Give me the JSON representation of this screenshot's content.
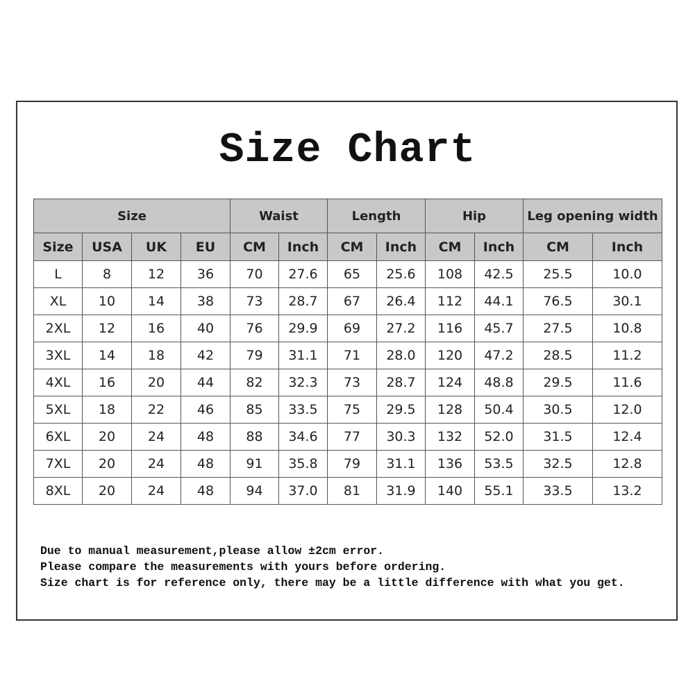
{
  "title": "Size Chart",
  "table": {
    "group_headers": [
      {
        "label": "Size",
        "span": 4
      },
      {
        "label": "Waist",
        "span": 2
      },
      {
        "label": "Length",
        "span": 2
      },
      {
        "label": "Hip",
        "span": 2
      },
      {
        "label": "Leg opening width",
        "span": 2
      }
    ],
    "sub_headers": [
      "Size",
      "USA",
      "UK",
      "EU",
      "CM",
      "Inch",
      "CM",
      "Inch",
      "CM",
      "Inch",
      "CM",
      "Inch"
    ],
    "rows": [
      [
        "L",
        "8",
        "12",
        "36",
        "70",
        "27.6",
        "65",
        "25.6",
        "108",
        "42.5",
        "25.5",
        "10.0"
      ],
      [
        "XL",
        "10",
        "14",
        "38",
        "73",
        "28.7",
        "67",
        "26.4",
        "112",
        "44.1",
        "76.5",
        "30.1"
      ],
      [
        "2XL",
        "12",
        "16",
        "40",
        "76",
        "29.9",
        "69",
        "27.2",
        "116",
        "45.7",
        "27.5",
        "10.8"
      ],
      [
        "3XL",
        "14",
        "18",
        "42",
        "79",
        "31.1",
        "71",
        "28.0",
        "120",
        "47.2",
        "28.5",
        "11.2"
      ],
      [
        "4XL",
        "16",
        "20",
        "44",
        "82",
        "32.3",
        "73",
        "28.7",
        "124",
        "48.8",
        "29.5",
        "11.6"
      ],
      [
        "5XL",
        "18",
        "22",
        "46",
        "85",
        "33.5",
        "75",
        "29.5",
        "128",
        "50.4",
        "30.5",
        "12.0"
      ],
      [
        "6XL",
        "20",
        "24",
        "48",
        "88",
        "34.6",
        "77",
        "30.3",
        "132",
        "52.0",
        "31.5",
        "12.4"
      ],
      [
        "7XL",
        "20",
        "24",
        "48",
        "91",
        "35.8",
        "79",
        "31.1",
        "136",
        "53.5",
        "32.5",
        "12.8"
      ],
      [
        "8XL",
        "20",
        "24",
        "48",
        "94",
        "37.0",
        "81",
        "31.9",
        "140",
        "55.1",
        "33.5",
        "13.2"
      ]
    ]
  },
  "notes": [
    "Due to manual measurement,please allow ±2cm error.",
    "Please compare the measurements with yours before ordering.",
    "Size chart is for reference only, there may be a little difference with what you get."
  ],
  "colors": {
    "header_bg": "#c8c8c8",
    "border": "#555555"
  }
}
